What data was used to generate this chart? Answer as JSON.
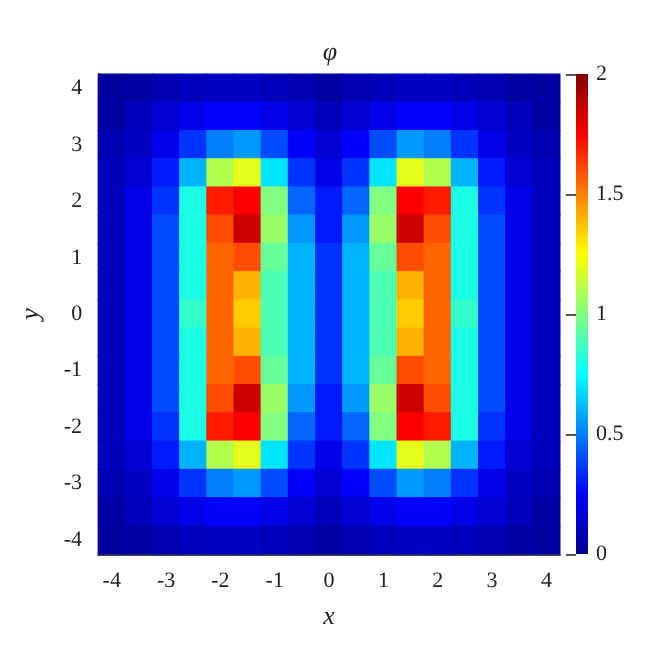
{
  "chart_data": {
    "type": "heatmap",
    "title": "φ",
    "xlabel": "x",
    "ylabel": "y",
    "categories": [
      "-4",
      null,
      "-3",
      null,
      "-2",
      null,
      "-1",
      null,
      "0",
      null,
      "1",
      null,
      "2",
      null,
      "3",
      null,
      "4"
    ],
    "y_categories": [
      "4",
      null,
      "3",
      null,
      "2",
      null,
      "1",
      null,
      "0",
      null,
      "-1",
      null,
      "-2",
      null,
      "-3",
      null,
      "-4"
    ],
    "cells": [
      [
        0.04,
        0.05,
        0.08,
        0.1,
        0.12,
        0.12,
        0.1,
        0.08,
        0.05,
        0.08,
        0.1,
        0.12,
        0.12,
        0.1,
        0.08,
        0.05,
        0.04
      ],
      [
        0.05,
        0.1,
        0.15,
        0.2,
        0.25,
        0.25,
        0.2,
        0.15,
        0.1,
        0.15,
        0.2,
        0.25,
        0.25,
        0.2,
        0.15,
        0.1,
        0.05
      ],
      [
        0.08,
        0.12,
        0.2,
        0.35,
        0.5,
        0.55,
        0.4,
        0.25,
        0.15,
        0.25,
        0.4,
        0.55,
        0.5,
        0.35,
        0.2,
        0.12,
        0.08
      ],
      [
        0.1,
        0.15,
        0.3,
        0.6,
        1.1,
        1.2,
        0.7,
        0.35,
        0.2,
        0.35,
        0.7,
        1.2,
        1.1,
        0.6,
        0.3,
        0.15,
        0.1
      ],
      [
        0.1,
        0.2,
        0.35,
        0.8,
        1.7,
        1.75,
        1.0,
        0.45,
        0.3,
        0.45,
        1.0,
        1.75,
        1.7,
        0.8,
        0.35,
        0.2,
        0.1
      ],
      [
        0.1,
        0.2,
        0.4,
        0.8,
        1.6,
        1.85,
        1.05,
        0.55,
        0.3,
        0.55,
        1.05,
        1.85,
        1.6,
        0.8,
        0.4,
        0.2,
        0.1
      ],
      [
        0.1,
        0.2,
        0.4,
        0.8,
        1.55,
        1.6,
        0.95,
        0.6,
        0.35,
        0.6,
        0.95,
        1.6,
        1.55,
        0.8,
        0.4,
        0.2,
        0.1
      ],
      [
        0.1,
        0.2,
        0.4,
        0.8,
        1.55,
        1.4,
        0.9,
        0.6,
        0.35,
        0.6,
        0.9,
        1.4,
        1.55,
        0.8,
        0.4,
        0.2,
        0.1
      ],
      [
        0.1,
        0.2,
        0.4,
        0.85,
        1.55,
        1.35,
        0.9,
        0.6,
        0.35,
        0.6,
        0.9,
        1.35,
        1.55,
        0.85,
        0.4,
        0.2,
        0.1
      ],
      [
        0.1,
        0.2,
        0.4,
        0.8,
        1.55,
        1.4,
        0.9,
        0.6,
        0.35,
        0.6,
        0.9,
        1.4,
        1.55,
        0.8,
        0.4,
        0.2,
        0.1
      ],
      [
        0.1,
        0.2,
        0.4,
        0.8,
        1.55,
        1.6,
        0.95,
        0.6,
        0.35,
        0.6,
        0.95,
        1.6,
        1.55,
        0.8,
        0.4,
        0.2,
        0.1
      ],
      [
        0.1,
        0.2,
        0.4,
        0.8,
        1.6,
        1.85,
        1.05,
        0.55,
        0.3,
        0.55,
        1.05,
        1.85,
        1.6,
        0.8,
        0.4,
        0.2,
        0.1
      ],
      [
        0.1,
        0.2,
        0.35,
        0.8,
        1.7,
        1.75,
        1.0,
        0.45,
        0.3,
        0.45,
        1.0,
        1.75,
        1.7,
        0.8,
        0.35,
        0.2,
        0.1
      ],
      [
        0.1,
        0.15,
        0.3,
        0.6,
        1.1,
        1.2,
        0.7,
        0.35,
        0.2,
        0.35,
        0.7,
        1.2,
        1.1,
        0.6,
        0.3,
        0.15,
        0.1
      ],
      [
        0.08,
        0.12,
        0.2,
        0.35,
        0.5,
        0.55,
        0.4,
        0.25,
        0.15,
        0.25,
        0.4,
        0.55,
        0.5,
        0.35,
        0.2,
        0.12,
        0.08
      ],
      [
        0.05,
        0.1,
        0.15,
        0.2,
        0.25,
        0.25,
        0.2,
        0.15,
        0.1,
        0.15,
        0.2,
        0.25,
        0.25,
        0.2,
        0.15,
        0.1,
        0.05
      ],
      [
        0.04,
        0.05,
        0.08,
        0.1,
        0.12,
        0.12,
        0.1,
        0.08,
        0.05,
        0.08,
        0.1,
        0.12,
        0.12,
        0.1,
        0.08,
        0.05,
        0.04
      ]
    ],
    "clim": [
      0,
      2
    ],
    "cticks": [
      0,
      0.5,
      1,
      1.5,
      2
    ]
  }
}
